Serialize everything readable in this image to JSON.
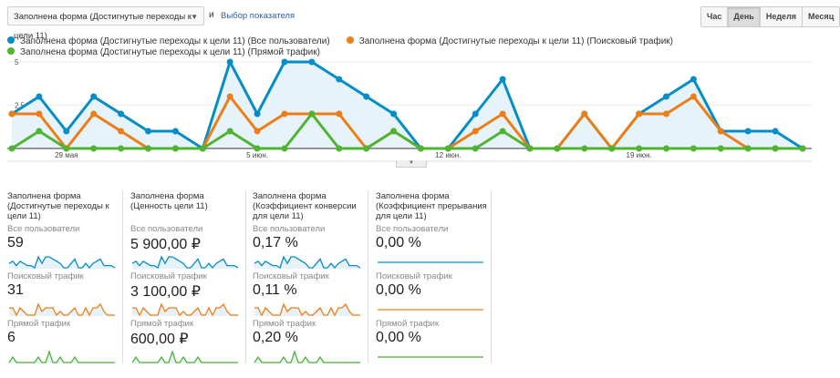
{
  "toolbar": {
    "metric_select": "Заполнена форма (Достигнутые переходы к цели 11)",
    "and": "и",
    "pick_metric": "Выбор показателя",
    "periods": [
      {
        "label": "Час",
        "active": false
      },
      {
        "label": "День",
        "active": true
      },
      {
        "label": "Неделя",
        "active": false
      },
      {
        "label": "Месяц",
        "active": false
      }
    ]
  },
  "chart_data": {
    "type": "line",
    "x_ticks": [
      "29 мая",
      "5 июн.",
      "12 июн.",
      "19 июн."
    ],
    "y_ticks": [
      "5",
      "2,5"
    ],
    "ylim": [
      0,
      5
    ],
    "grid": true,
    "legend_position": "top-left",
    "series": [
      {
        "name": "Заполнена форма (Достигнутые переходы к цели 11) (Все пользователи)",
        "color": "#058dc7",
        "area": true,
        "values": [
          2,
          3,
          1,
          3,
          2,
          1,
          1,
          0,
          5,
          2,
          5,
          5,
          4,
          3,
          2,
          0,
          0,
          2,
          4,
          0,
          0,
          2,
          0,
          2,
          3,
          4,
          1,
          1,
          1,
          0
        ]
      },
      {
        "name": "Заполнена форма (Достигнутые переходы к цели 11) (Поисковый трафик)",
        "color": "#ed7e17",
        "values": [
          2,
          2,
          0,
          2,
          1,
          0,
          0,
          0,
          3,
          1,
          2,
          2,
          2,
          0,
          1,
          0,
          0,
          1,
          2,
          0,
          0,
          2,
          0,
          2,
          2,
          3,
          1,
          0,
          0,
          0
        ]
      },
      {
        "name": "Заполнена форма (Достигнутые переходы к цели 11) (Прямой трафик)",
        "color": "#50b432",
        "values": [
          0,
          1,
          0,
          0,
          0,
          0,
          0,
          0,
          1,
          0,
          0,
          2,
          0,
          0,
          1,
          0,
          0,
          0,
          1,
          0,
          0,
          0,
          0,
          0,
          0,
          0,
          0,
          0,
          0,
          0
        ]
      }
    ]
  },
  "cards": [
    {
      "title": "Заполнена форма (Достигнутые переходы к цели 11)",
      "rows": [
        {
          "segment": "Все пользователи",
          "value": "59"
        },
        {
          "segment": "Поисковый трафик",
          "value": "31"
        },
        {
          "segment": "Прямой трафик",
          "value": "6"
        }
      ]
    },
    {
      "title": "Заполнена форма (Ценность цели 11)",
      "rows": [
        {
          "segment": "Все пользователи",
          "value": "5 900,00 ₽"
        },
        {
          "segment": "Поисковый трафик",
          "value": "3 100,00 ₽"
        },
        {
          "segment": "Прямой трафик",
          "value": "600,00 ₽"
        }
      ]
    },
    {
      "title": "Заполнена форма (Коэффициент конверсии для цели 11)",
      "rows": [
        {
          "segment": "Все пользователи",
          "value": "0,17 %"
        },
        {
          "segment": "Поисковый трафик",
          "value": "0,11 %"
        },
        {
          "segment": "Прямой трафик",
          "value": "0,20 %"
        }
      ]
    },
    {
      "title": "Заполнена форма (Коэффициент прерывания для цели 11)",
      "rows": [
        {
          "segment": "Все пользователи",
          "value": "0,00 %"
        },
        {
          "segment": "Поисковый трафик",
          "value": "0,00 %"
        },
        {
          "segment": "Прямой трафик",
          "value": "0,00 %"
        }
      ]
    }
  ]
}
